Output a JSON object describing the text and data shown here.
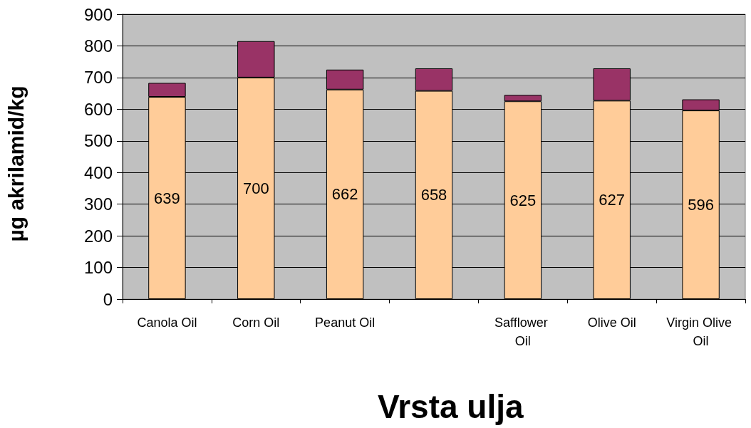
{
  "chart_data": {
    "type": "bar",
    "stacked": true,
    "xlabel": "Vrsta ulja",
    "ylabel": "µg akrilamid/kg",
    "categories": [
      "Canola Oil",
      "Corn Oil",
      "Peanut Oil",
      null,
      "Safflower Oil",
      "Olive Oil",
      "Virgin Olive Oil"
    ],
    "series": [
      {
        "color": "#ffcc99",
        "values": [
          639,
          700,
          662,
          658,
          625,
          627,
          596
        ],
        "value_labels": [
          "639",
          "700",
          "662",
          "658",
          "625",
          "627",
          "596"
        ]
      },
      {
        "color": "#993366",
        "values": [
          44,
          115,
          63,
          71,
          20,
          102,
          35
        ]
      }
    ],
    "ylim": [
      0,
      900
    ],
    "yticks": [
      0,
      100,
      200,
      300,
      400,
      500,
      600,
      700,
      800,
      900
    ],
    "grid": "y"
  }
}
